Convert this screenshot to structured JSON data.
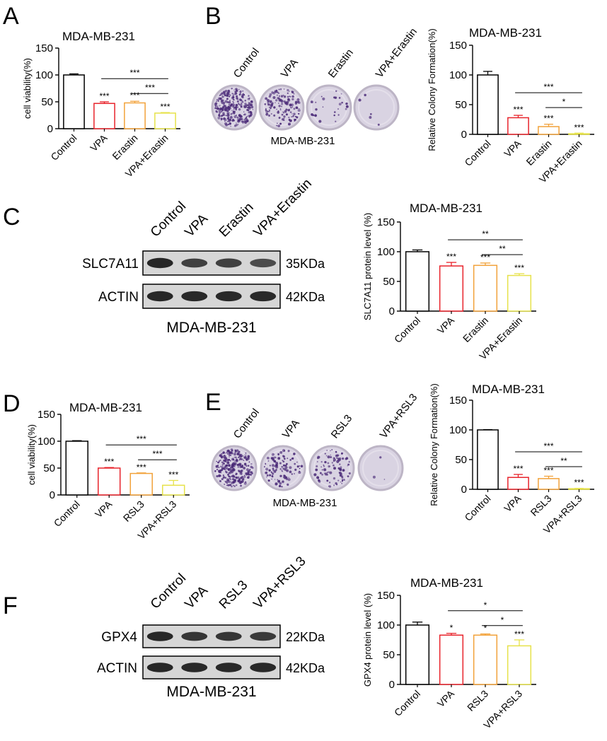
{
  "colors": {
    "control": "#000000",
    "vpa": "#e8232b",
    "erastin": "#f2a23a",
    "rsl3": "#f2a23a",
    "combo": "#e6e24a",
    "plate_rim": "#bdb5c6",
    "plate_bg": "#d9d3e2",
    "colony": "#4b2b78",
    "band": "#1e1e1e",
    "blot_bg": "#d6d6d6"
  },
  "panels": {
    "A": {
      "label": "A"
    },
    "B": {
      "label": "B",
      "plate_labels": [
        "Control",
        "VPA",
        "Erastin",
        "VPA+Erastin"
      ],
      "plate_densities": [
        1.0,
        0.5,
        0.1,
        0.02
      ],
      "caption": "MDA-MB-231"
    },
    "C": {
      "label": "C",
      "lanes": [
        "Control",
        "VPA",
        "Erastin",
        "VPA+Erastin"
      ],
      "rows": [
        {
          "name": "SLC7A11",
          "size": "35KDa",
          "intensities": [
            1.0,
            0.72,
            0.74,
            0.6
          ]
        },
        {
          "name": "ACTIN",
          "size": "42KDa",
          "intensities": [
            1.0,
            0.98,
            0.98,
            0.98
          ]
        }
      ],
      "caption": "MDA-MB-231"
    },
    "D": {
      "label": "D"
    },
    "E": {
      "label": "E",
      "plate_labels": [
        "Control",
        "VPA",
        "RSL3",
        "VPA+RSL3"
      ],
      "plate_densities": [
        1.0,
        0.4,
        0.35,
        0.01
      ],
      "caption": "MDA-MB-231"
    },
    "F": {
      "label": "F",
      "lanes": [
        "Control",
        "VPA",
        "RSL3",
        "VPA+RSL3"
      ],
      "rows": [
        {
          "name": "GPX4",
          "size": "22KDa",
          "intensities": [
            1.0,
            0.85,
            0.85,
            0.8
          ]
        },
        {
          "name": "ACTIN",
          "size": "42KDa",
          "intensities": [
            1.0,
            0.98,
            0.98,
            0.98
          ]
        }
      ],
      "caption": "MDA-MB-231"
    }
  },
  "chart_data": [
    {
      "id": "A",
      "type": "bar",
      "title": "MDA-MB-231",
      "ylabel": "cell viability(%)",
      "ylim": [
        0,
        150
      ],
      "yticks": [
        0,
        50,
        100,
        150
      ],
      "categories": [
        "Control",
        "VPA",
        "Erastin",
        "VPA+Erastin"
      ],
      "values": [
        100,
        47,
        48,
        29
      ],
      "errors": [
        2,
        3,
        3,
        1
      ],
      "bar_colors": [
        "#000000",
        "#e8232b",
        "#f2a23a",
        "#e6e24a"
      ],
      "stars": [
        "",
        "***",
        "***",
        "***"
      ],
      "brackets": [
        {
          "from": 1,
          "to": 3,
          "label": "***"
        },
        {
          "from": 2,
          "to": 3,
          "label": "***"
        }
      ]
    },
    {
      "id": "B",
      "type": "bar",
      "title": "MDA-MB-231",
      "ylabel": "Relative Colony Formation(%)",
      "ylim": [
        0,
        150
      ],
      "yticks": [
        0,
        50,
        100,
        150
      ],
      "categories": [
        "Control",
        "VPA",
        "Erastin",
        "VPA+Erastin"
      ],
      "values": [
        100,
        28,
        13,
        1
      ],
      "errors": [
        6,
        4,
        4,
        1
      ],
      "bar_colors": [
        "#000000",
        "#e8232b",
        "#f2a23a",
        "#e6e24a"
      ],
      "stars": [
        "",
        "***",
        "***",
        "***"
      ],
      "brackets": [
        {
          "from": 1,
          "to": 3,
          "label": "***"
        },
        {
          "from": 2,
          "to": 3,
          "label": "*"
        }
      ]
    },
    {
      "id": "C",
      "type": "bar",
      "title": "MDA-MB-231",
      "ylabel": "SLC7A11 protein level (%)",
      "ylim": [
        0,
        150
      ],
      "yticks": [
        0,
        50,
        100,
        150
      ],
      "categories": [
        "Control",
        "VPA",
        "Erastin",
        "VPA+Erastin"
      ],
      "values": [
        100,
        76,
        77,
        60
      ],
      "errors": [
        3,
        6,
        4,
        3
      ],
      "bar_colors": [
        "#000000",
        "#e8232b",
        "#f2a23a",
        "#e6e24a"
      ],
      "stars": [
        "",
        "***",
        "***",
        "***"
      ],
      "brackets": [
        {
          "from": 1,
          "to": 3,
          "label": "**"
        },
        {
          "from": 2,
          "to": 3,
          "label": "**"
        }
      ]
    },
    {
      "id": "D",
      "type": "bar",
      "title": "MDA-MB-231",
      "ylabel": "cell viability(%)",
      "ylim": [
        0,
        150
      ],
      "yticks": [
        0,
        50,
        100,
        150
      ],
      "categories": [
        "Control",
        "VPA",
        "RSL3",
        "VPA+RSL3"
      ],
      "values": [
        100,
        50,
        40,
        18
      ],
      "errors": [
        1,
        1,
        1,
        9
      ],
      "bar_colors": [
        "#000000",
        "#e8232b",
        "#f2a23a",
        "#e6e24a"
      ],
      "stars": [
        "",
        "***",
        "***",
        "***"
      ],
      "brackets": [
        {
          "from": 1,
          "to": 3,
          "label": "***"
        },
        {
          "from": 2,
          "to": 3,
          "label": "***"
        }
      ]
    },
    {
      "id": "E",
      "type": "bar",
      "title": "MDA-MB-231",
      "ylabel": "Relative Colony Formation(%)",
      "ylim": [
        0,
        150
      ],
      "yticks": [
        0,
        50,
        100,
        150
      ],
      "categories": [
        "Control",
        "VPA",
        "RSL3",
        "VPA+RSL3"
      ],
      "values": [
        100,
        20,
        18,
        1
      ],
      "errors": [
        0.5,
        5,
        4,
        0.5
      ],
      "bar_colors": [
        "#000000",
        "#e8232b",
        "#f2a23a",
        "#e6e24a"
      ],
      "stars": [
        "",
        "***",
        "***",
        "***"
      ],
      "brackets": [
        {
          "from": 1,
          "to": 3,
          "label": "***"
        },
        {
          "from": 2,
          "to": 3,
          "label": "**"
        }
      ]
    },
    {
      "id": "F",
      "type": "bar",
      "title": "MDA-MB-231",
      "ylabel": "GPX4 protein level (%)",
      "ylim": [
        0,
        150
      ],
      "yticks": [
        0,
        50,
        100,
        150
      ],
      "categories": [
        "Control",
        "VPA",
        "RSL3",
        "VPA+RSL3"
      ],
      "values": [
        100,
        83,
        83,
        65
      ],
      "errors": [
        5,
        3,
        2,
        10
      ],
      "bar_colors": [
        "#000000",
        "#e8232b",
        "#f2a23a",
        "#e6e24a"
      ],
      "stars": [
        "",
        "*",
        "*",
        "***"
      ],
      "brackets": [
        {
          "from": 1,
          "to": 3,
          "label": "*"
        },
        {
          "from": 2,
          "to": 3,
          "label": "*"
        }
      ]
    }
  ]
}
